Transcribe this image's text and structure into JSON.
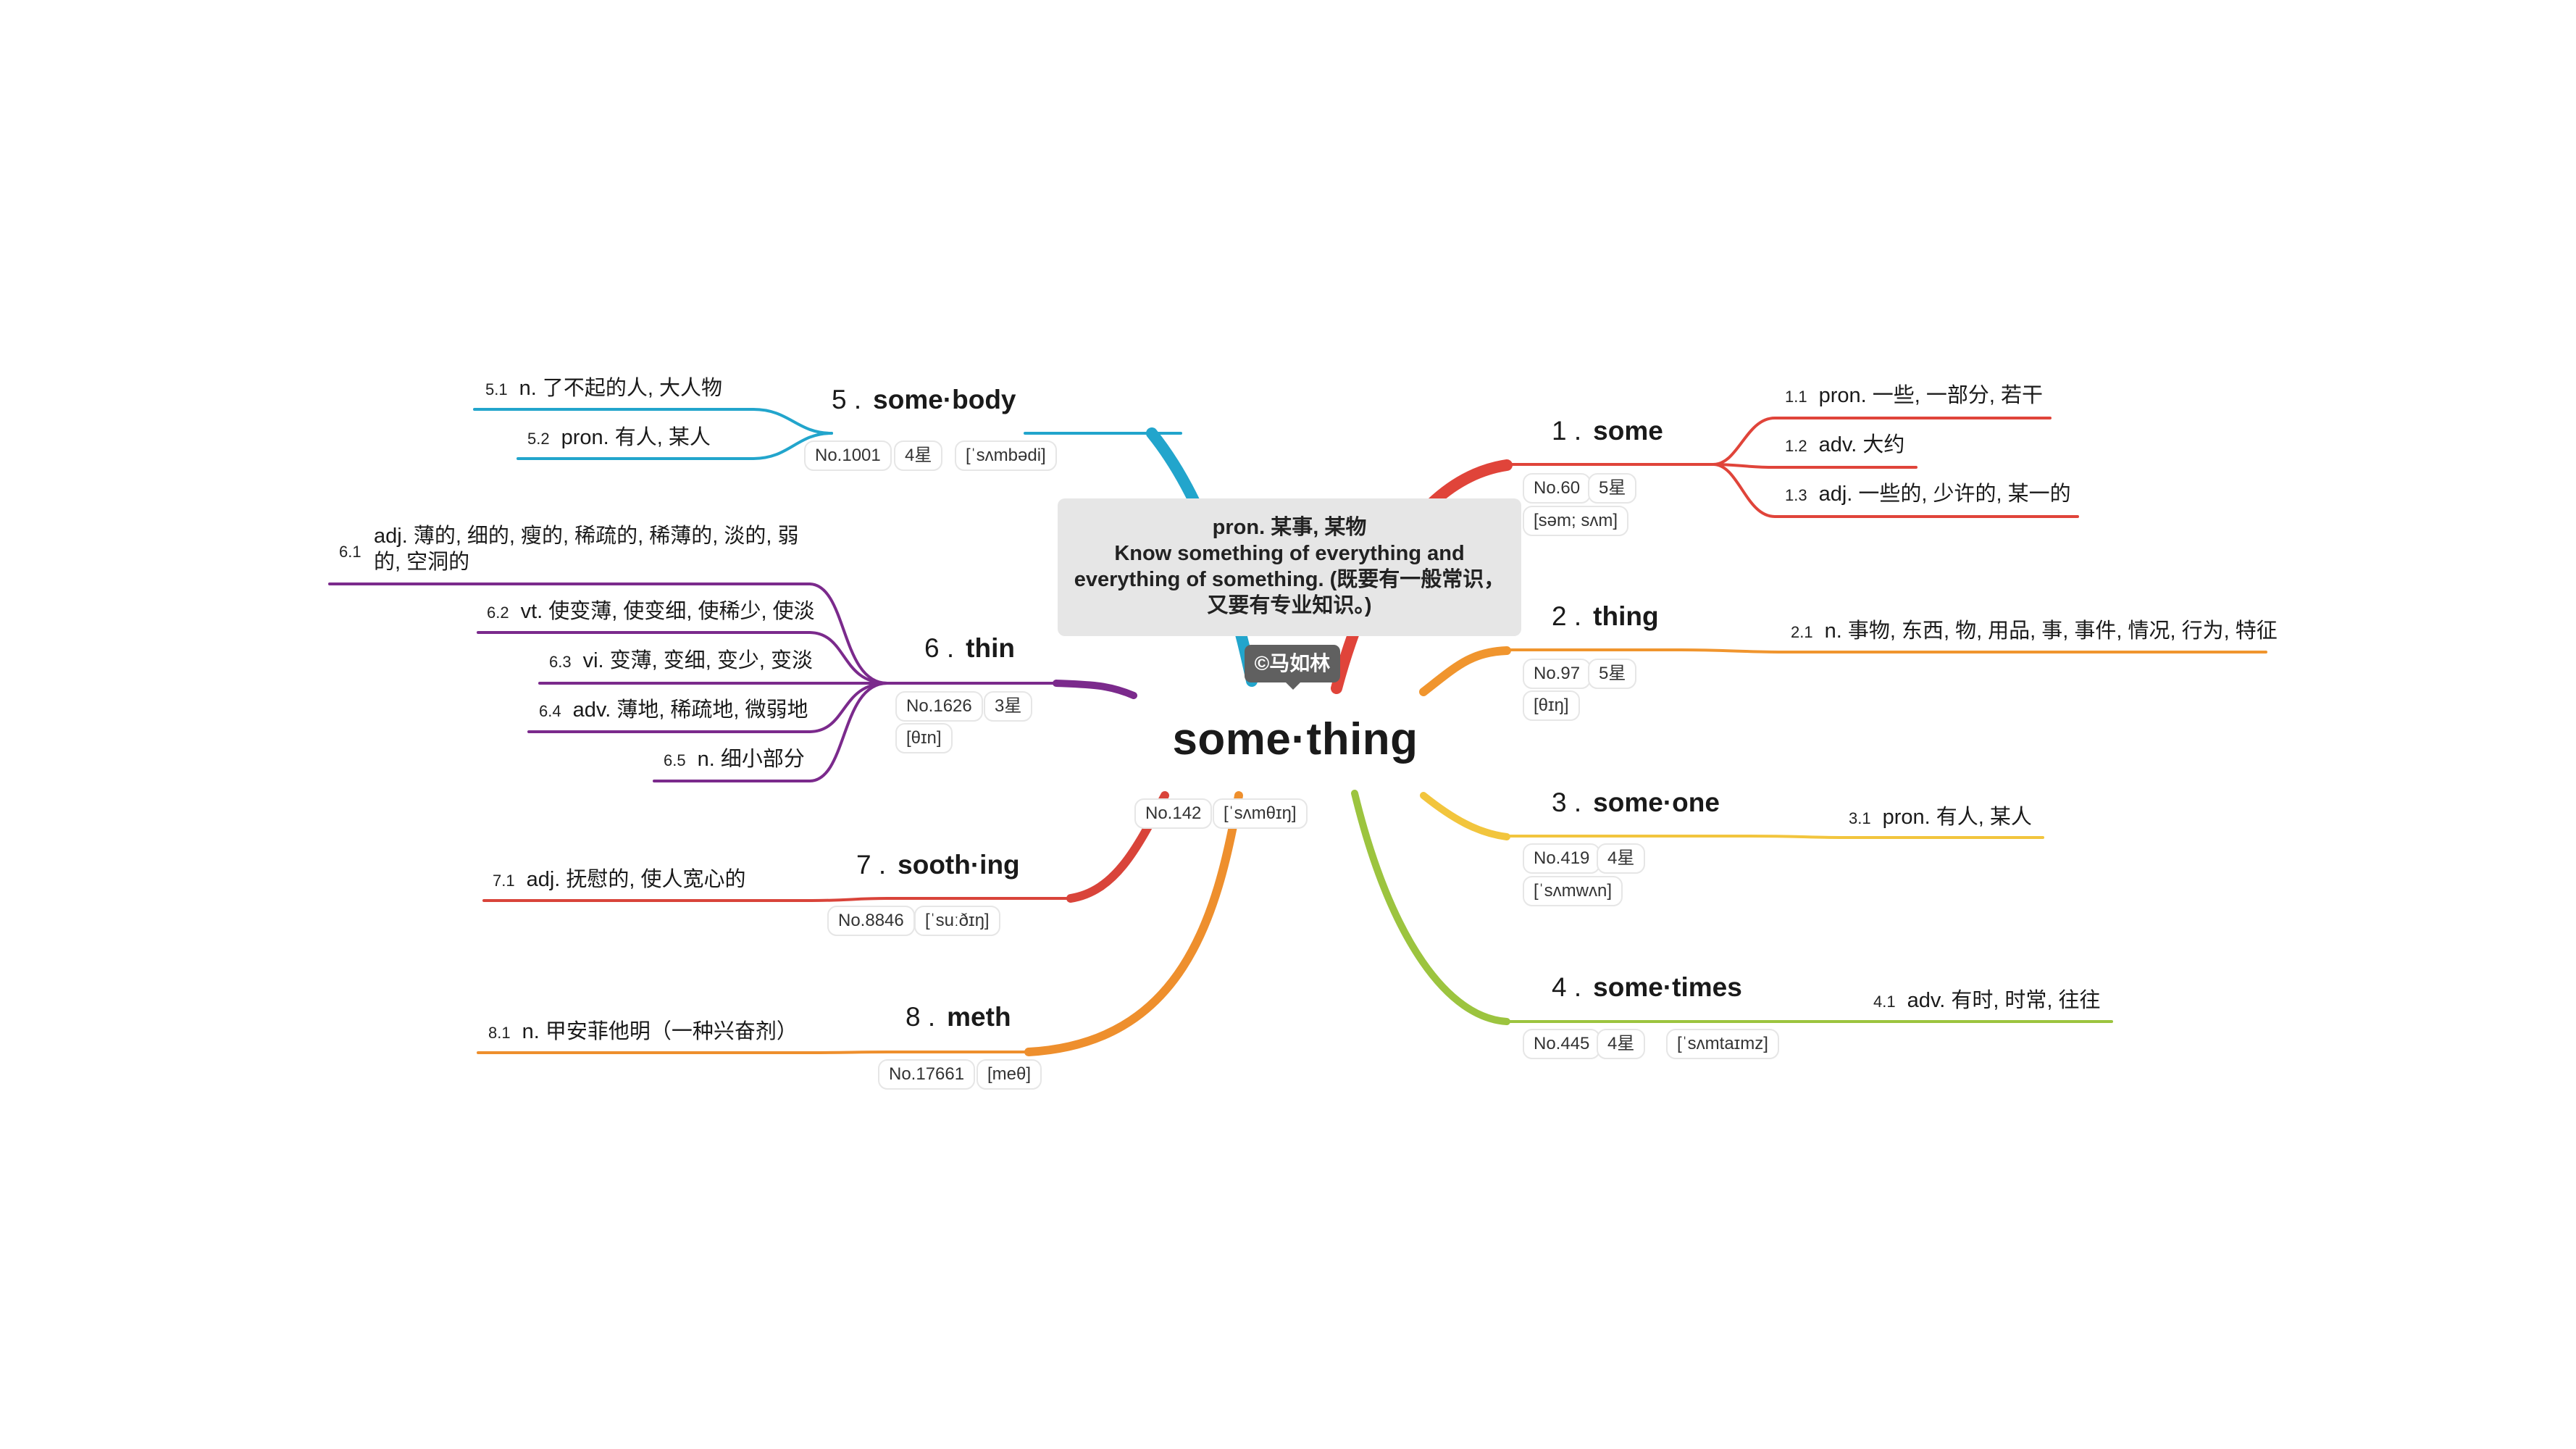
{
  "root": {
    "word": "some·thing",
    "rank": "No.142",
    "phonetic": "[ˈsʌmθɪŋ]",
    "note": "pron. 某事, 某物\nKnow something of everything and\neverything of something. (既要有一般常识，\n又要有专业知识。)",
    "copyright": "©马如林"
  },
  "colors": {
    "branch1": "#e0443a",
    "branch2": "#f0952e",
    "branch3": "#f2c53d",
    "branch4": "#9cc43f",
    "branch5": "#22a5cc",
    "branch6": "#7b2a8c",
    "branch7": "#d9443a",
    "branch8": "#ee8f2d"
  },
  "branches": [
    {
      "num": "1 .",
      "word": "some",
      "rank": "No.60",
      "stars": "5星",
      "phonetic": "[səm; sʌm]",
      "meanings": [
        {
          "num": "1.1",
          "text": "pron. 一些, 一部分, 若干"
        },
        {
          "num": "1.2",
          "text": "adv. 大约"
        },
        {
          "num": "1.3",
          "text": "adj. 一些的, 少许的, 某一的"
        }
      ]
    },
    {
      "num": "2 .",
      "word": "thing",
      "rank": "No.97",
      "stars": "5星",
      "phonetic": "[θɪŋ]",
      "meanings": [
        {
          "num": "2.1",
          "text": "n. 事物, 东西, 物, 用品, 事, 事件, 情况, 行为, 特征"
        }
      ]
    },
    {
      "num": "3 .",
      "word": "some·one",
      "rank": "No.419",
      "stars": "4星",
      "phonetic": "[ˈsʌmwʌn]",
      "meanings": [
        {
          "num": "3.1",
          "text": "pron. 有人, 某人"
        }
      ]
    },
    {
      "num": "4 .",
      "word": "some·times",
      "rank": "No.445",
      "stars": "4星",
      "phonetic": "[ˈsʌmtaɪmz]",
      "meanings": [
        {
          "num": "4.1",
          "text": "adv. 有时, 时常, 往往"
        }
      ]
    },
    {
      "num": "5 .",
      "word": "some·body",
      "rank": "No.1001",
      "stars": "4星",
      "phonetic": "[ˈsʌmbədi]",
      "meanings": [
        {
          "num": "5.1",
          "text": "n. 了不起的人, 大人物"
        },
        {
          "num": "5.2",
          "text": "pron. 有人, 某人"
        }
      ]
    },
    {
      "num": "6 .",
      "word": "thin",
      "rank": "No.1626",
      "stars": "3星",
      "phonetic": "[θɪn]",
      "meanings": [
        {
          "num": "6.1",
          "text": "adj. 薄的, 细的, 瘦的, 稀疏的, 稀薄的, 淡的, 弱的, 空洞的"
        },
        {
          "num": "6.2",
          "text": "vt. 使变薄, 使变细, 使稀少, 使淡"
        },
        {
          "num": "6.3",
          "text": "vi. 变薄, 变细, 变少, 变淡"
        },
        {
          "num": "6.4",
          "text": "adv. 薄地, 稀疏地, 微弱地"
        },
        {
          "num": "6.5",
          "text": "n. 细小部分"
        }
      ]
    },
    {
      "num": "7 .",
      "word": "sooth·ing",
      "rank": "No.8846",
      "phonetic": "[ˈsuːðɪŋ]",
      "meanings": [
        {
          "num": "7.1",
          "text": "adj. 抚慰的, 使人宽心的"
        }
      ]
    },
    {
      "num": "8 .",
      "word": "meth",
      "rank": "No.17661",
      "phonetic": "[meθ]",
      "meanings": [
        {
          "num": "8.1",
          "text": "n. 甲安菲他明（一种兴奋剂）"
        }
      ]
    }
  ]
}
